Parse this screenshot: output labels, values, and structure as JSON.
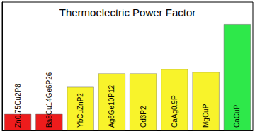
{
  "chart_data": {
    "type": "bar",
    "title": "Thermoelectric Power Factor",
    "categories": [
      "Zn0.75Cu2P8",
      "Ba8Cu14Ge6P26",
      "YbCuZnP2",
      "Ag6Ge10P12",
      "Cd3P2",
      "CaAg0.9P",
      "MgCuP",
      "CaCuP"
    ],
    "values": [
      23,
      23,
      61,
      80,
      80,
      86,
      82,
      149
    ],
    "colors": [
      "#ee1c1c",
      "#ee1c1c",
      "#f8f32b",
      "#f8f32b",
      "#f8f32b",
      "#f8f32b",
      "#f8f32b",
      "#2ee84a"
    ],
    "ylim": [
      0,
      180
    ],
    "grid": false,
    "tick_labels": false
  }
}
